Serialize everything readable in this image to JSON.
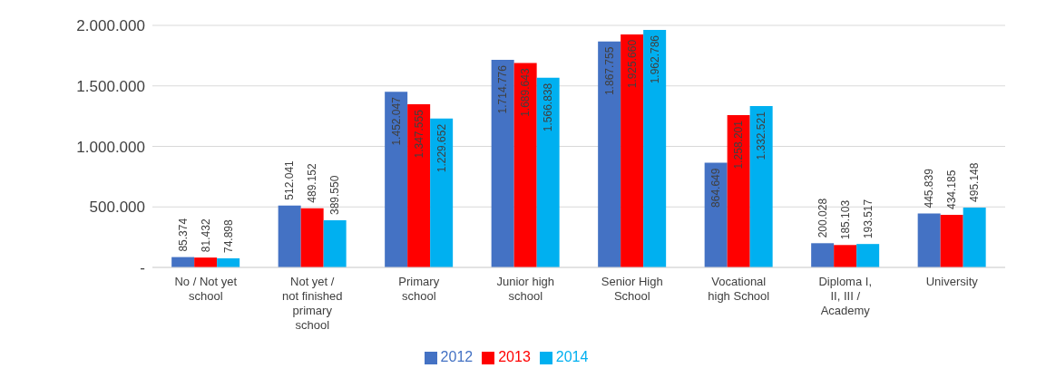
{
  "chart_data": {
    "type": "bar",
    "categories": [
      "No / Not yet school",
      "Not yet / not finished primary school",
      "Primary school",
      "Junior high school",
      "Senior High School",
      "Vocational high School",
      "Diploma I, II, III / Academy",
      "University"
    ],
    "series": [
      {
        "name": "2012",
        "color": "#4472c4",
        "values": [
          85374,
          512041,
          1452047,
          1714776,
          1867755,
          864649,
          200028,
          445839
        ],
        "value_labels": [
          "85.374",
          "512.041",
          "1.452.047",
          "1.714.776",
          "1.867.755",
          "864.649",
          "200.028",
          "445.839"
        ]
      },
      {
        "name": "2013",
        "color": "#ff0000",
        "values": [
          81432,
          489152,
          1347555,
          1689643,
          1925660,
          1258201,
          185103,
          434185
        ],
        "value_labels": [
          "81.432",
          "489.152",
          "1.347.555",
          "1.689.643",
          "1.925.660",
          "1.258.201",
          "185.103",
          "434.185"
        ]
      },
      {
        "name": "2014",
        "color": "#00b0f0",
        "values": [
          74898,
          389550,
          1229652,
          1566838,
          1962786,
          1332521,
          193517,
          495148
        ],
        "value_labels": [
          "74.898",
          "389.550",
          "1.229.652",
          "1.566.838",
          "1.962.786",
          "1.332.521",
          "193.517",
          "495.148"
        ]
      }
    ],
    "ylim": [
      0,
      2000000
    ],
    "yticks": [
      {
        "value": 0,
        "label": "-"
      },
      {
        "value": 500000,
        "label": "500.000"
      },
      {
        "value": 1000000,
        "label": "1.000.000"
      },
      {
        "value": 1500000,
        "label": "1.500.000"
      },
      {
        "value": 2000000,
        "label": "2.000.000"
      }
    ],
    "grid": "y",
    "legend": "bottom"
  }
}
